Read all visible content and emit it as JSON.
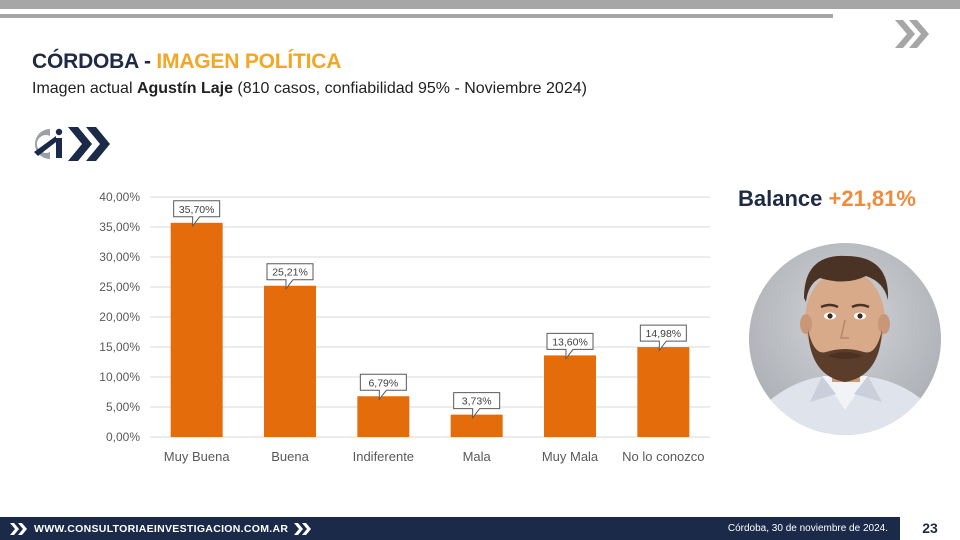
{
  "header": {
    "title_main": "CÓRDOBA - ",
    "title_accent": "IMAGEN POLÍTICA",
    "subtitle_prefix": "Imagen actual ",
    "subtitle_name": "Agustín Laje",
    "subtitle_suffix": " (810 casos, confiabilidad 95% - Noviembre 2024)"
  },
  "logo": {
    "text": "Ci"
  },
  "balance": {
    "label": "Balance ",
    "value": "+21,81%"
  },
  "footer": {
    "website": "WWW.CONSULTORIAEINVESTIGACION.COM.AR",
    "date": "Córdoba, 30 de noviembre de 2024.",
    "page_number": "23"
  },
  "colors": {
    "bar": "#e46c0a",
    "navy": "#1c2a4a",
    "accent_orange": "#f5a623",
    "balance_orange": "#f08a3c",
    "gray": "#a6a6a6"
  },
  "chart_data": {
    "type": "bar",
    "title": "",
    "xlabel": "",
    "ylabel": "",
    "categories": [
      "Muy Buena",
      "Buena",
      "Indiferente",
      "Mala",
      "Muy Mala",
      "No lo conozco"
    ],
    "values": [
      35.7,
      25.21,
      6.79,
      3.73,
      13.6,
      14.98
    ],
    "data_labels": [
      "35,70%",
      "25,21%",
      "6,79%",
      "3,73%",
      "13,60%",
      "14,98%"
    ],
    "ylim": [
      0,
      40
    ],
    "yticks": [
      0,
      5,
      10,
      15,
      20,
      25,
      30,
      35,
      40
    ],
    "ytick_labels": [
      "0,00%",
      "5,00%",
      "10,00%",
      "15,00%",
      "20,00%",
      "25,00%",
      "30,00%",
      "35,00%",
      "40,00%"
    ],
    "grid": true
  }
}
